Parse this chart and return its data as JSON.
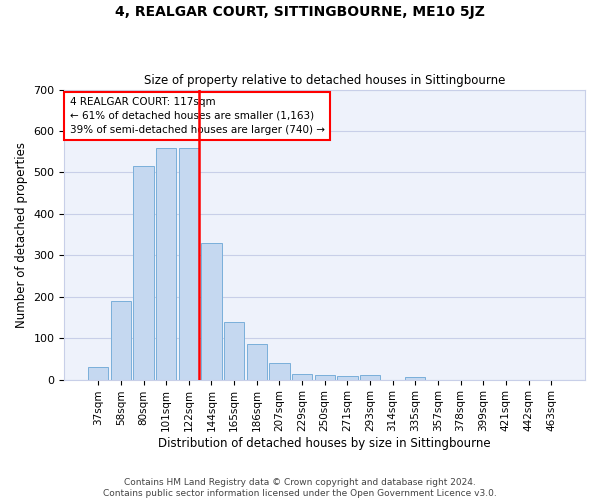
{
  "title": "4, REALGAR COURT, SITTINGBOURNE, ME10 5JZ",
  "subtitle": "Size of property relative to detached houses in Sittingbourne",
  "xlabel": "Distribution of detached houses by size in Sittingbourne",
  "ylabel": "Number of detached properties",
  "categories": [
    "37sqm",
    "58sqm",
    "80sqm",
    "101sqm",
    "122sqm",
    "144sqm",
    "165sqm",
    "186sqm",
    "207sqm",
    "229sqm",
    "250sqm",
    "271sqm",
    "293sqm",
    "314sqm",
    "335sqm",
    "357sqm",
    "378sqm",
    "399sqm",
    "421sqm",
    "442sqm",
    "463sqm"
  ],
  "values": [
    30,
    190,
    515,
    560,
    560,
    330,
    140,
    85,
    40,
    13,
    10,
    8,
    10,
    0,
    6,
    0,
    0,
    0,
    0,
    0,
    0
  ],
  "bar_color": "#c5d8f0",
  "bar_edge_color": "#7aafda",
  "vline_x": 4.45,
  "annotation_text": "4 REALGAR COURT: 117sqm\n← 61% of detached houses are smaller (1,163)\n39% of semi-detached houses are larger (740) →",
  "ylim": [
    0,
    700
  ],
  "yticks": [
    0,
    100,
    200,
    300,
    400,
    500,
    600,
    700
  ],
  "footer": "Contains HM Land Registry data © Crown copyright and database right 2024.\nContains public sector information licensed under the Open Government Licence v3.0.",
  "bg_color": "#eef2fb",
  "grid_color": "#c8cfe8",
  "title_fontsize": 10,
  "subtitle_fontsize": 8.5,
  "ylabel_fontsize": 8.5,
  "xlabel_fontsize": 8.5,
  "tick_fontsize": 7.5,
  "annotation_fontsize": 7.5,
  "footer_fontsize": 6.5
}
